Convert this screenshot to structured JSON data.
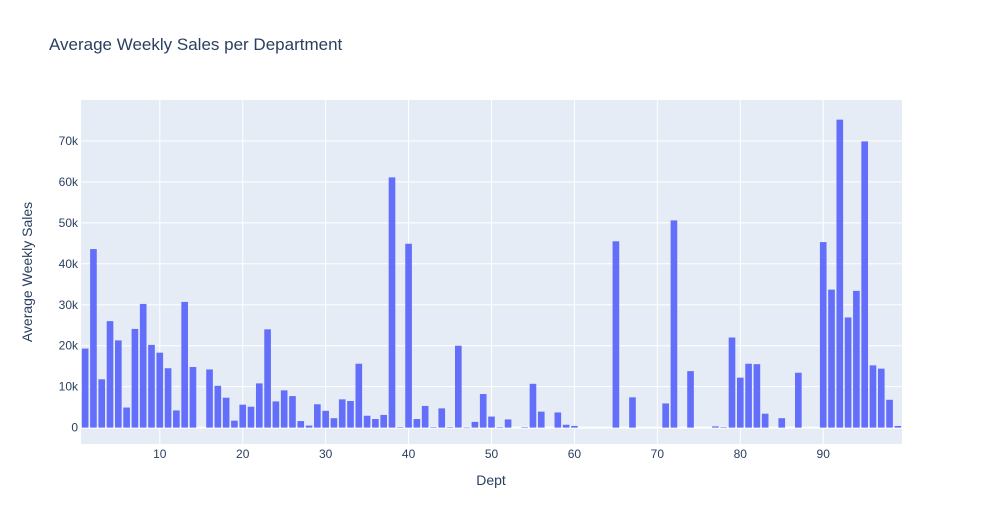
{
  "chart_data": {
    "type": "bar",
    "title": "Average Weekly Sales per Department",
    "xlabel": "Dept",
    "ylabel": "Average Weekly Sales",
    "xlim": [
      0.5,
      99.5
    ],
    "ylim": [
      -4000,
      80000
    ],
    "x_ticks": [
      10,
      20,
      30,
      40,
      50,
      60,
      70,
      80,
      90
    ],
    "x_tick_labels": [
      "10",
      "20",
      "30",
      "40",
      "50",
      "60",
      "70",
      "80",
      "90"
    ],
    "y_ticks": [
      0,
      10000,
      20000,
      30000,
      40000,
      50000,
      60000,
      70000
    ],
    "y_tick_labels": [
      "0",
      "10k",
      "20k",
      "30k",
      "40k",
      "50k",
      "60k",
      "70k"
    ],
    "grid": true,
    "legend": "none",
    "colors": {
      "bar": "#636efa",
      "plot_bg": "#e5ecf6",
      "grid": "#ffffff",
      "text": "#2a3f5f"
    },
    "x": [
      1,
      2,
      3,
      4,
      5,
      6,
      7,
      8,
      9,
      10,
      11,
      12,
      13,
      14,
      16,
      17,
      18,
      19,
      20,
      21,
      22,
      23,
      24,
      25,
      26,
      27,
      28,
      29,
      30,
      31,
      32,
      33,
      34,
      35,
      36,
      37,
      38,
      39,
      40,
      41,
      42,
      43,
      44,
      45,
      46,
      47,
      48,
      49,
      50,
      51,
      52,
      54,
      55,
      56,
      58,
      59,
      60,
      65,
      67,
      71,
      72,
      74,
      77,
      78,
      79,
      80,
      81,
      82,
      83,
      85,
      87,
      90,
      91,
      92,
      93,
      94,
      95,
      96,
      97,
      98,
      99
    ],
    "values": [
      19300,
      43600,
      11800,
      26000,
      21300,
      4900,
      24100,
      30200,
      20200,
      18300,
      14500,
      4200,
      30700,
      14800,
      14200,
      10200,
      7300,
      1700,
      5600,
      5100,
      10800,
      24000,
      6400,
      9100,
      7700,
      1600,
      500,
      5700,
      4100,
      2300,
      6900,
      6500,
      15600,
      2900,
      2100,
      3100,
      61100,
      50,
      44900,
      2100,
      5300,
      50,
      4700,
      50,
      20000,
      -60,
      1400,
      8200,
      2700,
      50,
      2000,
      50,
      10700,
      3900,
      3700,
      700,
      400,
      45500,
      7400,
      5900,
      50600,
      13800,
      300,
      50,
      22000,
      12200,
      15600,
      15500,
      3400,
      2300,
      13400,
      45300,
      33700,
      75200,
      26900,
      33400,
      69900,
      15200,
      14400,
      6800,
      400
    ]
  }
}
